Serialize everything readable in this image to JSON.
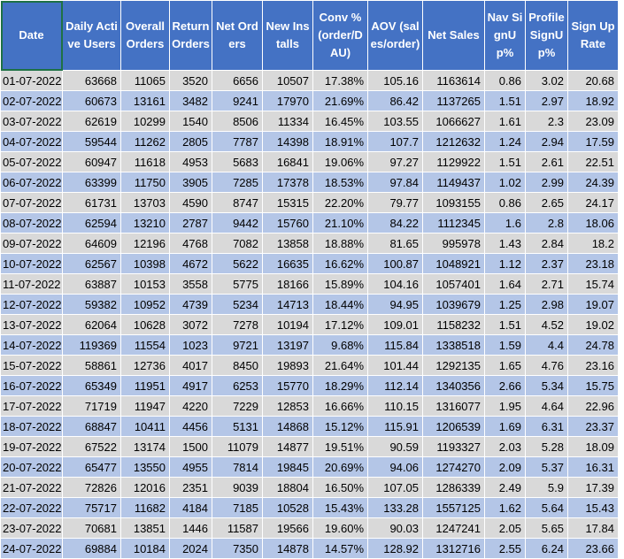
{
  "columns": [
    "Date",
    "Daily Active Users",
    "Overall Orders",
    "Return Orders",
    "Net Orders",
    "New Installs",
    "Conv % (order/DAU)",
    "AOV (sales/order)",
    "Net Sales",
    "Nav SignUp%",
    "Profile SignUp%",
    "Sign Up Rate"
  ],
  "rows": [
    [
      "01-07-2022",
      "63668",
      "11065",
      "3520",
      "6656",
      "10507",
      "17.38%",
      "105.16",
      "1163614",
      "0.86",
      "3.02",
      "20.68"
    ],
    [
      "02-07-2022",
      "60673",
      "13161",
      "3482",
      "9241",
      "17970",
      "21.69%",
      "86.42",
      "1137265",
      "1.51",
      "2.97",
      "18.92"
    ],
    [
      "03-07-2022",
      "62619",
      "10299",
      "1540",
      "8506",
      "11334",
      "16.45%",
      "103.55",
      "1066627",
      "1.61",
      "2.3",
      "23.09"
    ],
    [
      "04-07-2022",
      "59544",
      "11262",
      "2805",
      "7787",
      "14398",
      "18.91%",
      "107.7",
      "1212632",
      "1.24",
      "2.94",
      "17.59"
    ],
    [
      "05-07-2022",
      "60947",
      "11618",
      "4953",
      "5683",
      "16841",
      "19.06%",
      "97.27",
      "1129922",
      "1.51",
      "2.61",
      "22.51"
    ],
    [
      "06-07-2022",
      "63399",
      "11750",
      "3905",
      "7285",
      "17378",
      "18.53%",
      "97.84",
      "1149437",
      "1.02",
      "2.99",
      "24.39"
    ],
    [
      "07-07-2022",
      "61731",
      "13703",
      "4590",
      "8747",
      "15315",
      "22.20%",
      "79.77",
      "1093155",
      "0.86",
      "2.65",
      "24.17"
    ],
    [
      "08-07-2022",
      "62594",
      "13210",
      "2787",
      "9442",
      "15760",
      "21.10%",
      "84.22",
      "1112345",
      "1.6",
      "2.8",
      "18.06"
    ],
    [
      "09-07-2022",
      "64609",
      "12196",
      "4768",
      "7082",
      "13858",
      "18.88%",
      "81.65",
      "995978",
      "1.43",
      "2.84",
      "18.2"
    ],
    [
      "10-07-2022",
      "62567",
      "10398",
      "4672",
      "5622",
      "16635",
      "16.62%",
      "100.87",
      "1048921",
      "1.12",
      "2.37",
      "23.18"
    ],
    [
      "11-07-2022",
      "63887",
      "10153",
      "3558",
      "5775",
      "18166",
      "15.89%",
      "104.16",
      "1057401",
      "1.64",
      "2.71",
      "15.74"
    ],
    [
      "12-07-2022",
      "59382",
      "10952",
      "4739",
      "5234",
      "14713",
      "18.44%",
      "94.95",
      "1039679",
      "1.25",
      "2.98",
      "19.07"
    ],
    [
      "13-07-2022",
      "62064",
      "10628",
      "3072",
      "7278",
      "10194",
      "17.12%",
      "109.01",
      "1158232",
      "1.51",
      "4.52",
      "19.02"
    ],
    [
      "14-07-2022",
      "119369",
      "11554",
      "1023",
      "9721",
      "13197",
      "9.68%",
      "115.84",
      "1338518",
      "1.59",
      "4.4",
      "24.78"
    ],
    [
      "15-07-2022",
      "58861",
      "12736",
      "4017",
      "8450",
      "19893",
      "21.64%",
      "101.44",
      "1292135",
      "1.65",
      "4.76",
      "23.16"
    ],
    [
      "16-07-2022",
      "65349",
      "11951",
      "4917",
      "6253",
      "15770",
      "18.29%",
      "112.14",
      "1340356",
      "2.66",
      "5.34",
      "15.75"
    ],
    [
      "17-07-2022",
      "71719",
      "11947",
      "4220",
      "7229",
      "12853",
      "16.66%",
      "110.15",
      "1316077",
      "1.95",
      "4.64",
      "22.96"
    ],
    [
      "18-07-2022",
      "68847",
      "10411",
      "4456",
      "5131",
      "14868",
      "15.12%",
      "115.91",
      "1206539",
      "1.69",
      "6.31",
      "23.37"
    ],
    [
      "19-07-2022",
      "67522",
      "13174",
      "1500",
      "11079",
      "14877",
      "19.51%",
      "90.59",
      "1193327",
      "2.03",
      "5.28",
      "18.09"
    ],
    [
      "20-07-2022",
      "65477",
      "13550",
      "4955",
      "7814",
      "19845",
      "20.69%",
      "94.06",
      "1274270",
      "2.09",
      "5.37",
      "16.31"
    ],
    [
      "21-07-2022",
      "72826",
      "12016",
      "2351",
      "9039",
      "18804",
      "16.50%",
      "107.05",
      "1286339",
      "2.49",
      "5.9",
      "17.39"
    ],
    [
      "22-07-2022",
      "75717",
      "11682",
      "4184",
      "7185",
      "10528",
      "15.43%",
      "133.28",
      "1557125",
      "1.62",
      "5.64",
      "15.43"
    ],
    [
      "23-07-2022",
      "70681",
      "13851",
      "1446",
      "11587",
      "19566",
      "19.60%",
      "90.03",
      "1247241",
      "2.05",
      "5.65",
      "17.84"
    ],
    [
      "24-07-2022",
      "69884",
      "10184",
      "2024",
      "7350",
      "14878",
      "14.57%",
      "128.92",
      "1312716",
      "2.55",
      "6.24",
      "23.66"
    ]
  ]
}
